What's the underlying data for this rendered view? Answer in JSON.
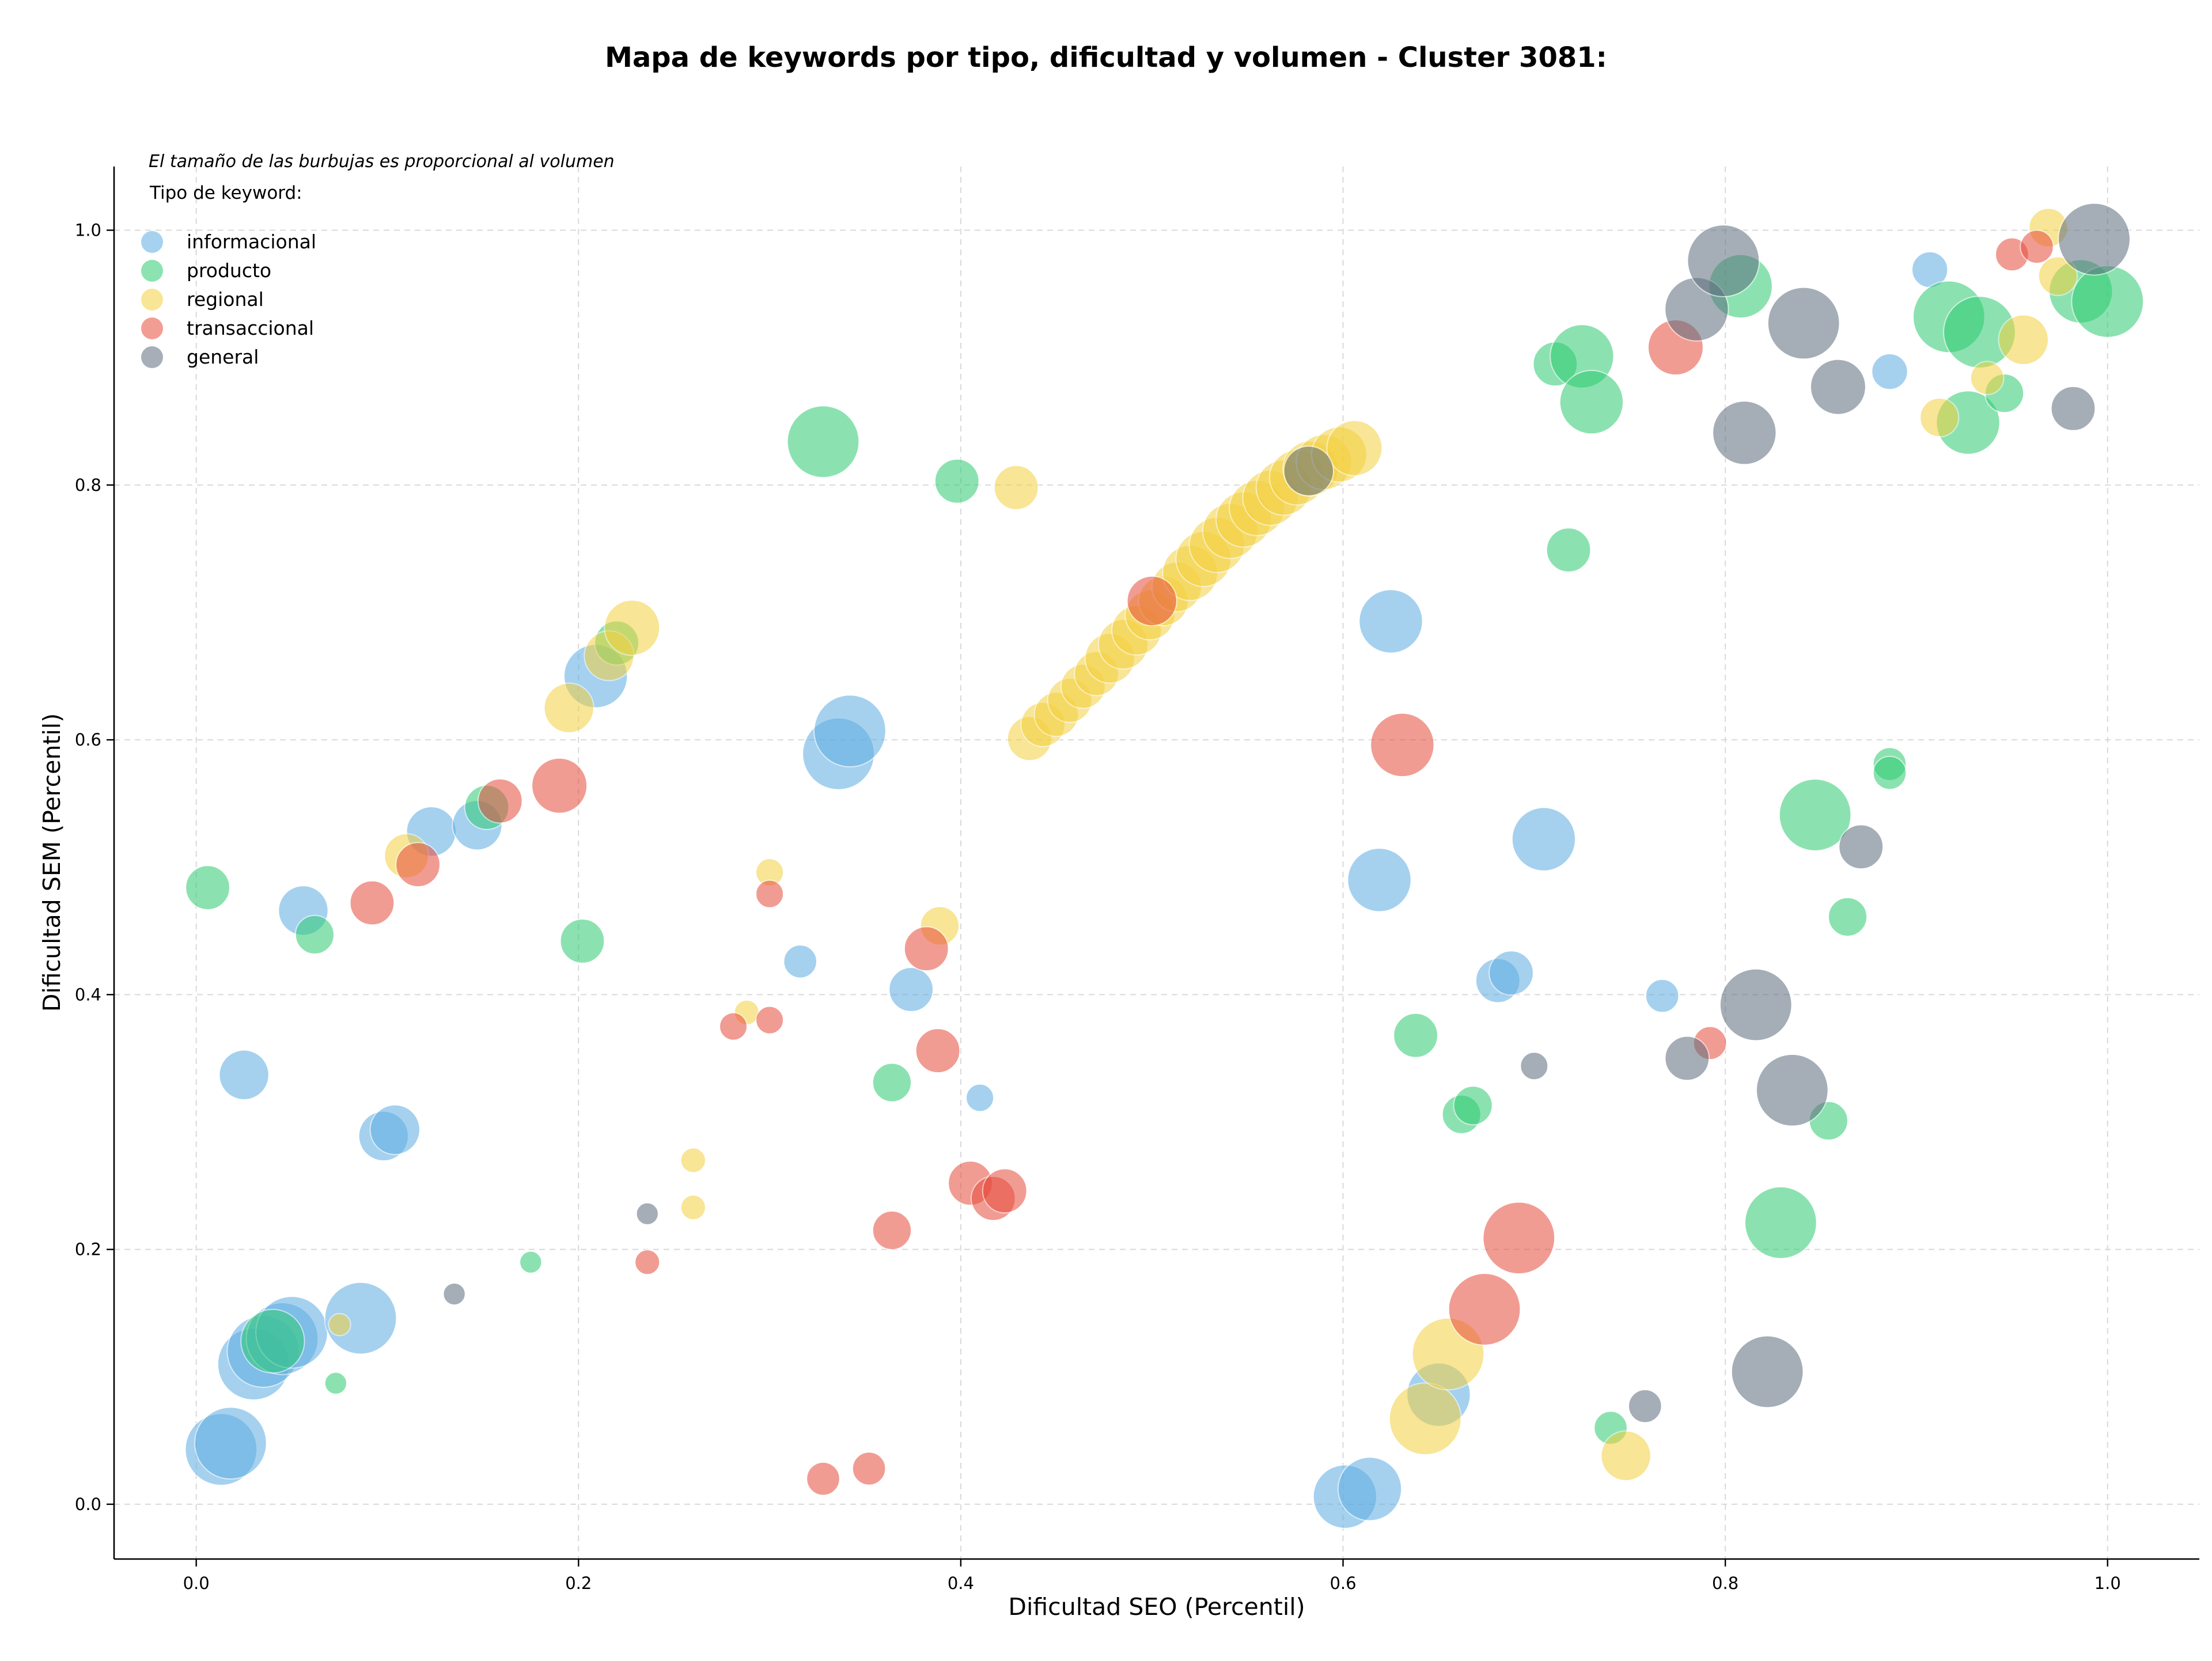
{
  "chart_data": {
    "type": "scatter",
    "title": "Mapa de keywords por tipo, dificultad y volumen - Cluster 3081:",
    "xlabel": "Dificultad SEO (Percentil)",
    "ylabel": "Dificultad SEM (Percentil)",
    "xlim": [
      -0.043,
      1.048
    ],
    "ylim": [
      -0.043,
      1.05
    ],
    "xticks": [
      "0.0",
      "0.2",
      "0.4",
      "0.6",
      "0.8",
      "1.0"
    ],
    "yticks": [
      "0.0",
      "0.2",
      "0.4",
      "0.6",
      "0.8",
      "1.0"
    ],
    "grid": true,
    "legend_position": "top-left",
    "size_note": "El tamaño de las burbujas es proporcional al volumen",
    "legend_title": "Tipo de keyword:",
    "series": [
      {
        "name": "informacional",
        "color": "#5dade2",
        "points": [
          [
            0.013,
            0.043,
            2.6
          ],
          [
            0.018,
            0.048,
            2.6
          ],
          [
            0.025,
            0.337,
            1.8
          ],
          [
            0.03,
            0.11,
            2.6
          ],
          [
            0.035,
            0.12,
            2.6
          ],
          [
            0.045,
            0.13,
            2.6
          ],
          [
            0.05,
            0.135,
            2.6
          ],
          [
            0.056,
            0.466,
            1.8
          ],
          [
            0.086,
            0.146,
            2.6
          ],
          [
            0.098,
            0.289,
            1.8
          ],
          [
            0.104,
            0.294,
            1.8
          ],
          [
            0.123,
            0.528,
            1.8
          ],
          [
            0.147,
            0.533,
            1.8
          ],
          [
            0.209,
            0.65,
            2.3
          ],
          [
            0.316,
            0.426,
            1.2
          ],
          [
            0.336,
            0.589,
            2.6
          ],
          [
            0.342,
            0.607,
            2.6
          ],
          [
            0.374,
            0.404,
            1.6
          ],
          [
            0.41,
            0.319,
            1.0
          ],
          [
            0.601,
            0.006,
            2.3
          ],
          [
            0.614,
            0.012,
            2.3
          ],
          [
            0.619,
            0.49,
            2.3
          ],
          [
            0.625,
            0.693,
            2.3
          ],
          [
            0.65,
            0.086,
            2.3
          ],
          [
            0.681,
            0.411,
            1.6
          ],
          [
            0.688,
            0.417,
            1.6
          ],
          [
            0.705,
            0.522,
            2.3
          ],
          [
            0.767,
            0.399,
            1.2
          ],
          [
            0.886,
            0.889,
            1.3
          ],
          [
            0.907,
            0.969,
            1.3
          ]
        ]
      },
      {
        "name": "producto",
        "color": "#2ecc71",
        "points": [
          [
            0.006,
            0.484,
            1.6
          ],
          [
            0.04,
            0.128,
            2.3
          ],
          [
            0.062,
            0.447,
            1.4
          ],
          [
            0.073,
            0.095,
            0.8
          ],
          [
            0.152,
            0.547,
            1.6
          ],
          [
            0.175,
            0.19,
            0.8
          ],
          [
            0.202,
            0.442,
            1.6
          ],
          [
            0.22,
            0.676,
            1.6
          ],
          [
            0.328,
            0.834,
            2.6
          ],
          [
            0.364,
            0.331,
            1.4
          ],
          [
            0.398,
            0.803,
            1.6
          ],
          [
            0.638,
            0.368,
            1.6
          ],
          [
            0.662,
            0.306,
            1.4
          ],
          [
            0.668,
            0.313,
            1.4
          ],
          [
            0.711,
            0.895,
            1.6
          ],
          [
            0.718,
            0.749,
            1.6
          ],
          [
            0.725,
            0.901,
            2.3
          ],
          [
            0.73,
            0.865,
            2.3
          ],
          [
            0.74,
            0.06,
            1.2
          ],
          [
            0.808,
            0.956,
            2.3
          ],
          [
            0.829,
            0.221,
            2.6
          ],
          [
            0.847,
            0.541,
            2.6
          ],
          [
            0.854,
            0.301,
            1.4
          ],
          [
            0.864,
            0.461,
            1.4
          ],
          [
            0.886,
            0.581,
            1.2
          ],
          [
            0.886,
            0.574,
            1.2
          ],
          [
            0.917,
            0.932,
            2.6
          ],
          [
            0.927,
            0.849,
            2.3
          ],
          [
            0.933,
            0.92,
            2.6
          ],
          [
            0.946,
            0.872,
            1.4
          ],
          [
            0.986,
            0.952,
            2.3
          ],
          [
            1.0,
            0.944,
            2.6
          ]
        ]
      },
      {
        "name": "regional",
        "color": "#f4d03f",
        "points": [
          [
            0.075,
            0.141,
            0.8
          ],
          [
            0.11,
            0.509,
            1.6
          ],
          [
            0.195,
            0.625,
            1.8
          ],
          [
            0.216,
            0.666,
            1.8
          ],
          [
            0.228,
            0.688,
            2.0
          ],
          [
            0.26,
            0.27,
            0.9
          ],
          [
            0.26,
            0.233,
            0.9
          ],
          [
            0.288,
            0.386,
            0.9
          ],
          [
            0.3,
            0.496,
            1.0
          ],
          [
            0.389,
            0.454,
            1.4
          ],
          [
            0.429,
            0.798,
            1.6
          ],
          [
            0.436,
            0.601,
            1.6
          ],
          [
            0.443,
            0.612,
            1.6
          ],
          [
            0.45,
            0.62,
            1.6
          ],
          [
            0.457,
            0.631,
            1.6
          ],
          [
            0.464,
            0.642,
            1.6
          ],
          [
            0.471,
            0.652,
            1.6
          ],
          [
            0.478,
            0.664,
            1.8
          ],
          [
            0.485,
            0.675,
            1.8
          ],
          [
            0.492,
            0.686,
            1.8
          ],
          [
            0.499,
            0.698,
            1.8
          ],
          [
            0.506,
            0.709,
            1.8
          ],
          [
            0.513,
            0.72,
            1.8
          ],
          [
            0.52,
            0.731,
            2.0
          ],
          [
            0.527,
            0.742,
            2.0
          ],
          [
            0.534,
            0.753,
            2.0
          ],
          [
            0.541,
            0.764,
            2.0
          ],
          [
            0.548,
            0.773,
            2.0
          ],
          [
            0.555,
            0.782,
            2.0
          ],
          [
            0.562,
            0.79,
            2.0
          ],
          [
            0.569,
            0.798,
            2.0
          ],
          [
            0.576,
            0.806,
            2.0
          ],
          [
            0.583,
            0.813,
            2.0
          ],
          [
            0.59,
            0.818,
            2.0
          ],
          [
            0.598,
            0.824,
            2.0
          ],
          [
            0.606,
            0.829,
            2.0
          ],
          [
            0.643,
            0.067,
            2.6
          ],
          [
            0.655,
            0.118,
            2.6
          ],
          [
            0.748,
            0.038,
            1.8
          ],
          [
            0.912,
            0.853,
            1.4
          ],
          [
            0.937,
            0.884,
            1.2
          ],
          [
            0.956,
            0.914,
            1.8
          ],
          [
            0.969,
            1.002,
            1.4
          ],
          [
            0.974,
            0.964,
            1.4
          ]
        ]
      },
      {
        "name": "transaccional",
        "color": "#e74c3c",
        "points": [
          [
            0.092,
            0.472,
            1.6
          ],
          [
            0.116,
            0.502,
            1.6
          ],
          [
            0.159,
            0.552,
            1.6
          ],
          [
            0.19,
            0.564,
            2.0
          ],
          [
            0.236,
            0.19,
            0.9
          ],
          [
            0.281,
            0.375,
            1.0
          ],
          [
            0.3,
            0.38,
            1.0
          ],
          [
            0.3,
            0.479,
            1.0
          ],
          [
            0.328,
            0.02,
            1.2
          ],
          [
            0.352,
            0.028,
            1.2
          ],
          [
            0.364,
            0.215,
            1.4
          ],
          [
            0.382,
            0.436,
            1.6
          ],
          [
            0.388,
            0.356,
            1.6
          ],
          [
            0.405,
            0.252,
            1.6
          ],
          [
            0.417,
            0.24,
            1.6
          ],
          [
            0.423,
            0.246,
            1.6
          ],
          [
            0.5,
            0.709,
            1.8
          ],
          [
            0.631,
            0.596,
            2.3
          ],
          [
            0.674,
            0.153,
            2.6
          ],
          [
            0.692,
            0.209,
            2.6
          ],
          [
            0.774,
            0.908,
            2.0
          ],
          [
            0.792,
            0.362,
            1.2
          ],
          [
            0.95,
            0.981,
            1.2
          ],
          [
            0.963,
            0.987,
            1.2
          ]
        ]
      },
      {
        "name": "general",
        "color": "#5d6d7e",
        "points": [
          [
            0.135,
            0.165,
            0.8
          ],
          [
            0.236,
            0.228,
            0.8
          ],
          [
            0.582,
            0.811,
            1.8
          ],
          [
            0.7,
            0.344,
            1.0
          ],
          [
            0.758,
            0.077,
            1.2
          ],
          [
            0.78,
            0.35,
            1.6
          ],
          [
            0.785,
            0.938,
            2.3
          ],
          [
            0.799,
            0.976,
            2.6
          ],
          [
            0.81,
            0.841,
            2.3
          ],
          [
            0.816,
            0.392,
            2.6
          ],
          [
            0.822,
            0.104,
            2.6
          ],
          [
            0.835,
            0.325,
            2.6
          ],
          [
            0.841,
            0.927,
            2.6
          ],
          [
            0.859,
            0.877,
            2.0
          ],
          [
            0.871,
            0.516,
            1.6
          ],
          [
            0.982,
            0.86,
            1.6
          ],
          [
            0.993,
            0.993,
            2.6
          ]
        ]
      }
    ]
  }
}
